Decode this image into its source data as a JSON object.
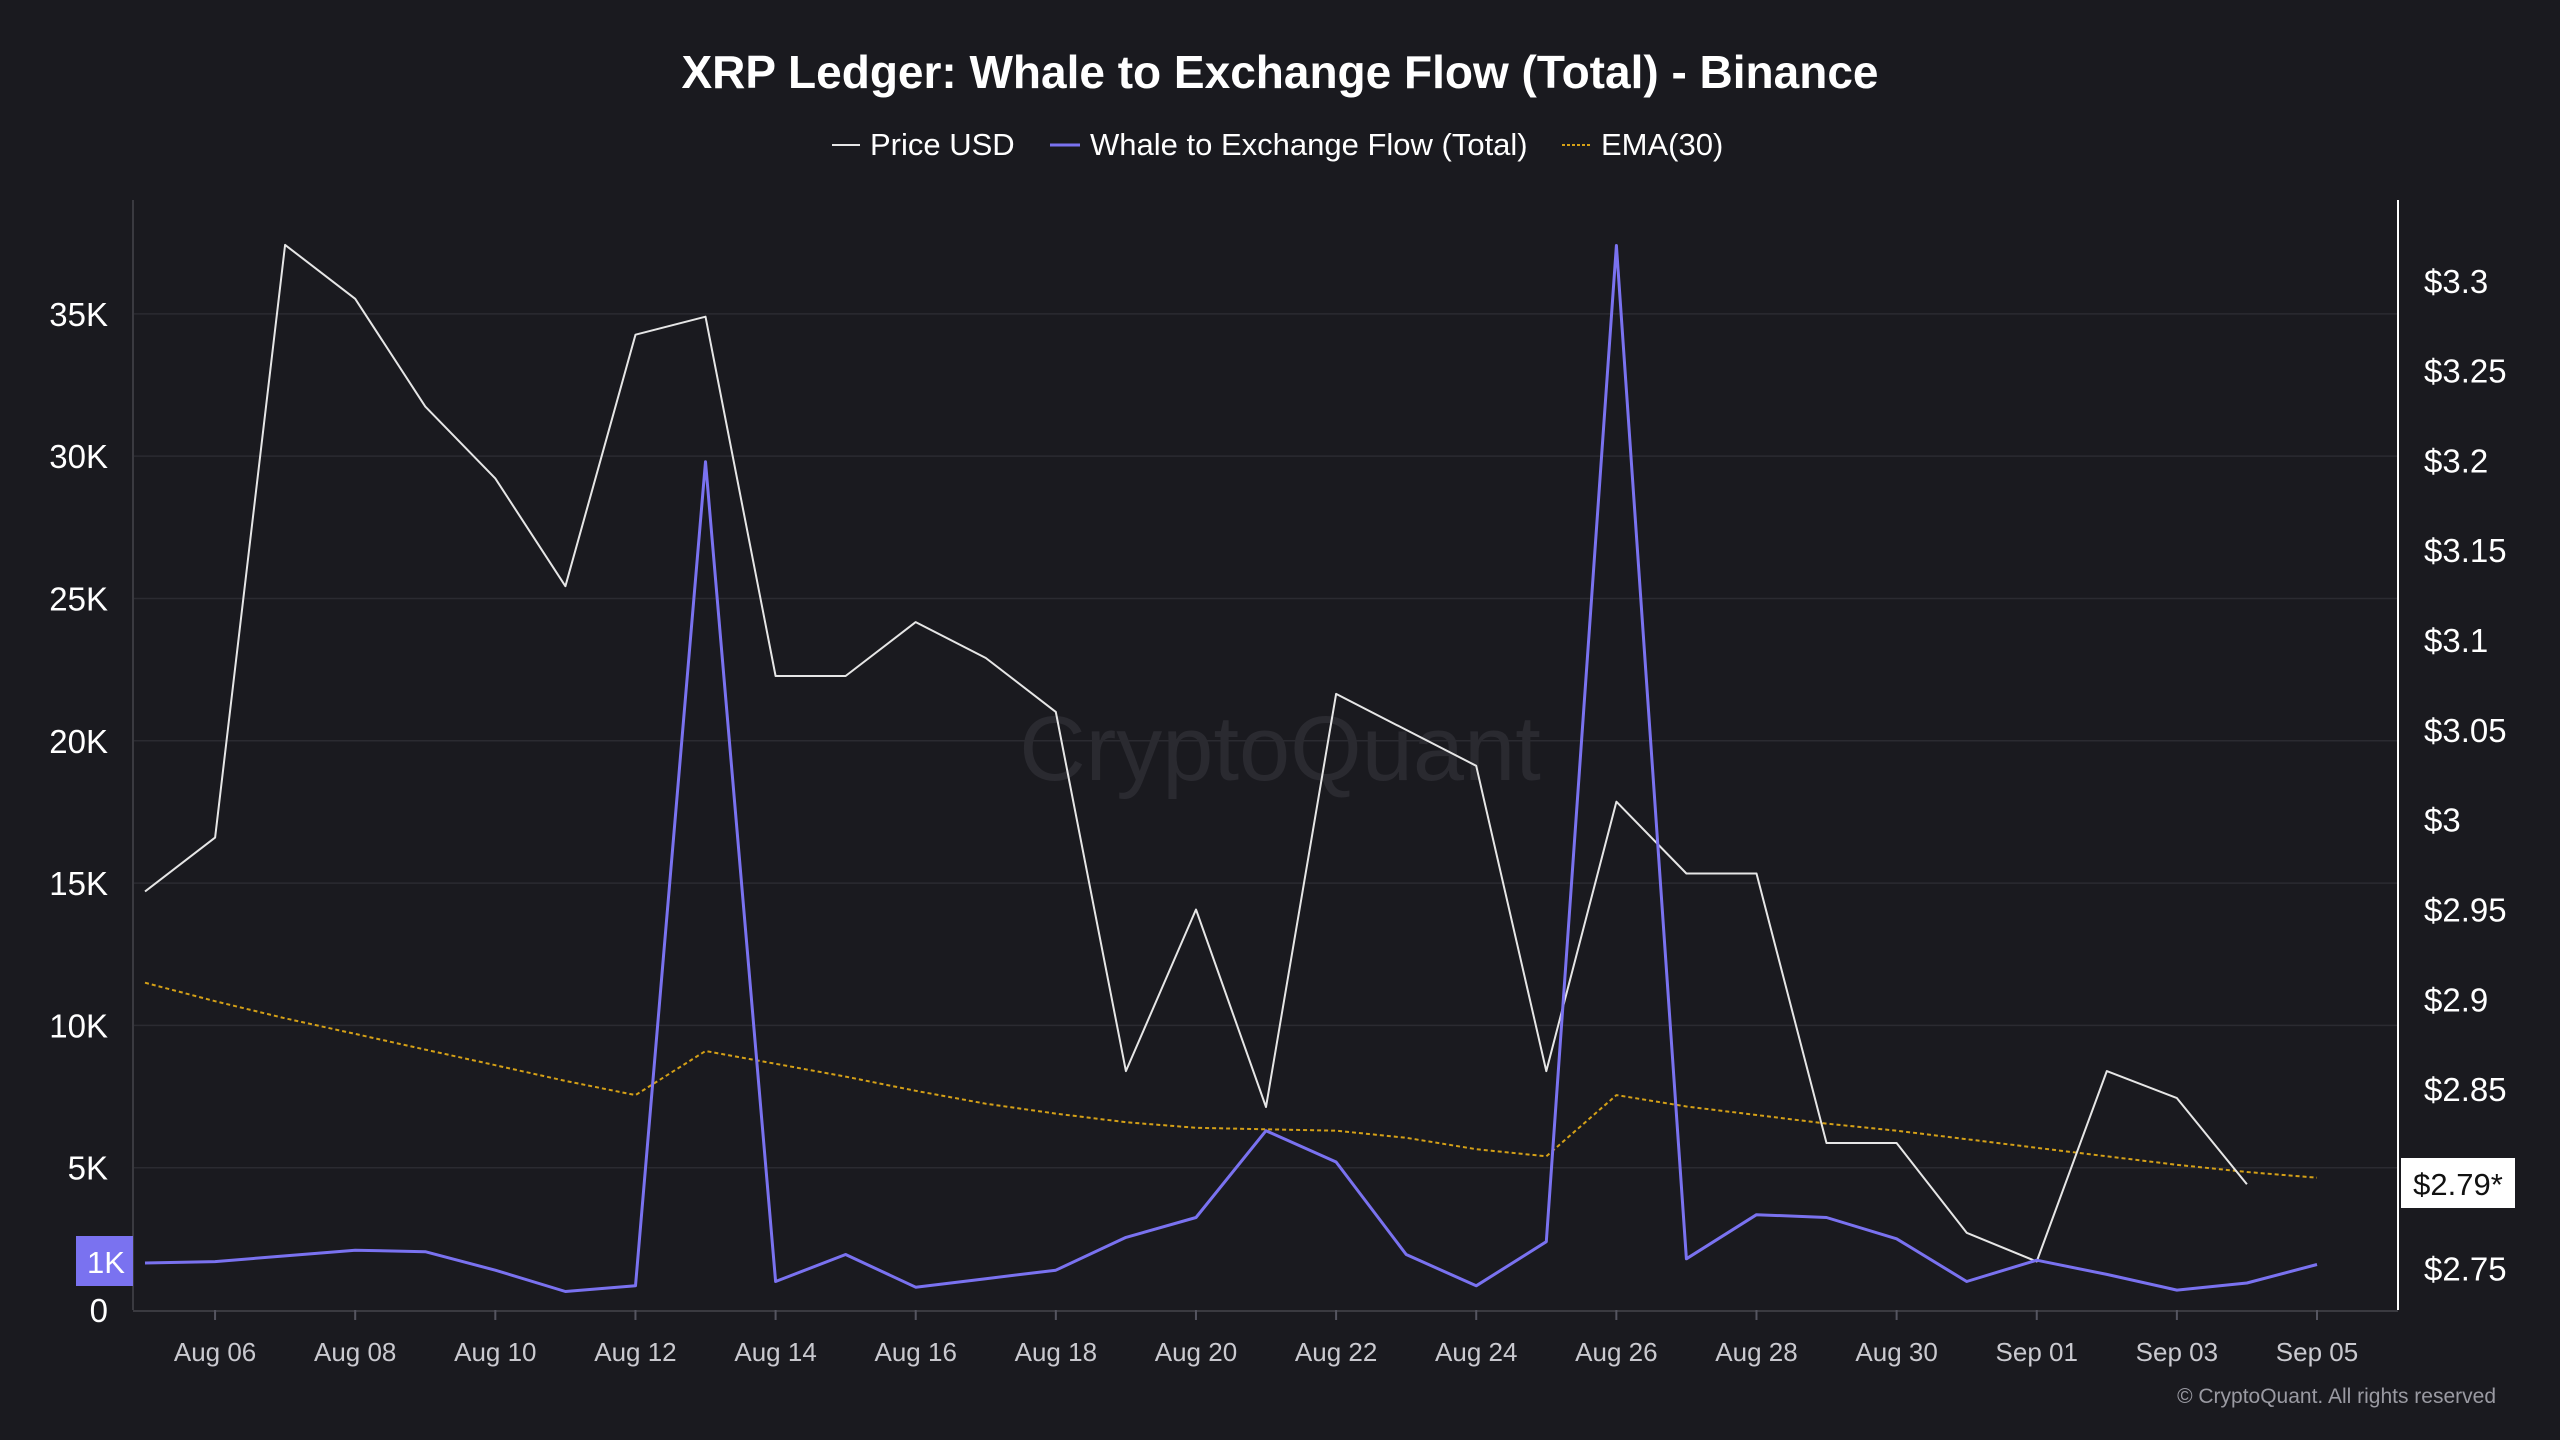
{
  "colors": {
    "background": "#1a1a1f",
    "grid": "#2b2b31",
    "price": "#e6e6e6",
    "flow": "#7a72f0",
    "ema": "#d4a017",
    "axis_text": "#ffffff"
  },
  "watermark": "CryptoQuant",
  "copyright": "© CryptoQuant. All rights reserved",
  "left_badge": "1K",
  "right_badge": "$2.79*",
  "chart_data": {
    "type": "line",
    "title": "XRP Ledger: Whale to Exchange Flow (Total) - Binance",
    "grid": true,
    "legend_position": "top-center",
    "x_ticks": [
      "Aug 06",
      "Aug 08",
      "Aug 10",
      "Aug 12",
      "Aug 14",
      "Aug 16",
      "Aug 18",
      "Aug 20",
      "Aug 22",
      "Aug 24",
      "Aug 26",
      "Aug 28",
      "Aug 30",
      "Sep 01",
      "Sep 03",
      "Sep 05"
    ],
    "x": [
      "Aug 05",
      "Aug 06",
      "Aug 07",
      "Aug 08",
      "Aug 09",
      "Aug 10",
      "Aug 11",
      "Aug 12",
      "Aug 13",
      "Aug 14",
      "Aug 15",
      "Aug 16",
      "Aug 17",
      "Aug 18",
      "Aug 19",
      "Aug 20",
      "Aug 21",
      "Aug 22",
      "Aug 23",
      "Aug 24",
      "Aug 25",
      "Aug 26",
      "Aug 27",
      "Aug 28",
      "Aug 29",
      "Aug 30",
      "Aug 31",
      "Sep 01",
      "Sep 02",
      "Sep 03",
      "Sep 04",
      "Sep 05"
    ],
    "y_left": {
      "ticks": [
        "0",
        "5K",
        "10K",
        "15K",
        "20K",
        "25K",
        "30K",
        "35K"
      ],
      "range": [
        0,
        39000
      ]
    },
    "y_right": {
      "ticks": [
        "$2.75",
        "$2.8",
        "$2.85",
        "$2.9",
        "$2.95",
        "$3",
        "$3.05",
        "$3.1",
        "$3.15",
        "$3.2",
        "$3.25",
        "$3.3"
      ],
      "range": [
        2.727,
        3.345
      ]
    },
    "series": [
      {
        "name": "Price USD",
        "axis": "right",
        "color": "#e6e6e6",
        "values": [
          2.96,
          2.99,
          3.32,
          3.29,
          3.23,
          3.19,
          3.13,
          3.27,
          3.28,
          3.08,
          3.08,
          3.11,
          3.09,
          3.06,
          2.86,
          2.95,
          2.84,
          3.07,
          3.05,
          3.03,
          2.86,
          3.01,
          2.97,
          2.97,
          2.82,
          2.82,
          2.77,
          2.754,
          2.86,
          2.845,
          2.797,
          null
        ]
      },
      {
        "name": "Whale to Exchange Flow (Total)",
        "axis": "left",
        "color": "#7a72f0",
        "values": [
          1650,
          1700,
          1900,
          2100,
          2050,
          1400,
          650,
          850,
          29800,
          1000,
          1950,
          800,
          1100,
          1400,
          2550,
          3250,
          6300,
          5200,
          1950,
          850,
          2400,
          37400,
          1800,
          3350,
          3250,
          2500,
          1000,
          1750,
          1250,
          700,
          950,
          1600
        ]
      },
      {
        "name": "EMA(30)",
        "axis": "left",
        "color": "#d4a017",
        "dashed": true,
        "values": [
          11500,
          10850,
          10250,
          9700,
          9150,
          8600,
          8050,
          7550,
          9100,
          8650,
          8200,
          7700,
          7250,
          6900,
          6600,
          6400,
          6350,
          6300,
          6050,
          5650,
          5400,
          7550,
          7150,
          6850,
          6550,
          6300,
          6000,
          5700,
          5400,
          5100,
          4850,
          4650
        ]
      }
    ]
  }
}
